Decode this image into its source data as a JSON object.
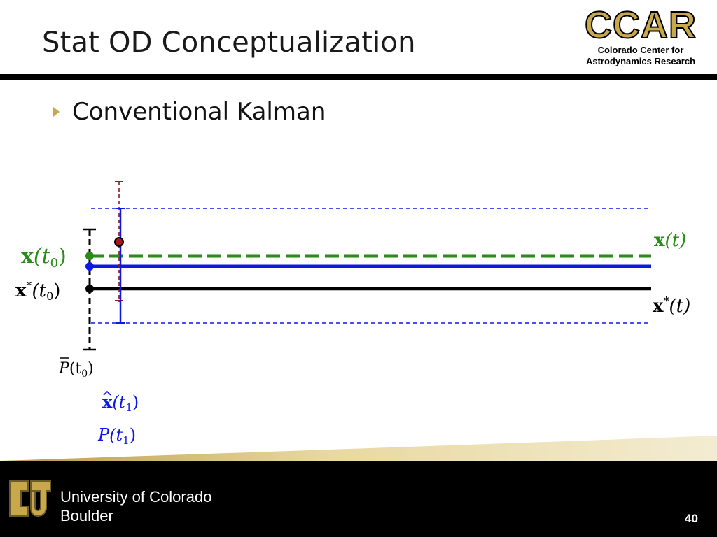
{
  "slide": {
    "title": "Stat OD Conceptualization",
    "bullet": "Conventional Kalman",
    "page_number": "40"
  },
  "logo": {
    "word": "CCAR",
    "line1": "Colorado Center for",
    "line2": "Astrodynamics Research"
  },
  "footer": {
    "line1": "University of Colorado",
    "line2": "Boulder"
  },
  "labels": {
    "x_t0": {
      "sym": "x",
      "arg": "(t",
      "sub": "0",
      "close": ")"
    },
    "xstar_t0": {
      "sym": "x",
      "sup": "*",
      "arg": "(t",
      "sub": "0",
      "close": ")"
    },
    "x_t": {
      "sym": "x",
      "arg": "(t)"
    },
    "xstar_t": {
      "sym": "x",
      "sup": "*",
      "arg": "(t)"
    },
    "pbar_t0": {
      "sym": "P",
      "arg": "(t",
      "sub": "0",
      "close": ")"
    },
    "xhat_t1": {
      "sym": "x",
      "arg": "(t",
      "sub": "1",
      "close": ")"
    },
    "p_t1": {
      "sym": "P",
      "arg": "(t",
      "sub": "1",
      "close": ")"
    }
  },
  "colors": {
    "true_state": "#2a8a1a",
    "estimate": "#0b18e6",
    "reference": "#000000",
    "observation": "#8b1a1a",
    "accent": "#c9a84c"
  }
}
